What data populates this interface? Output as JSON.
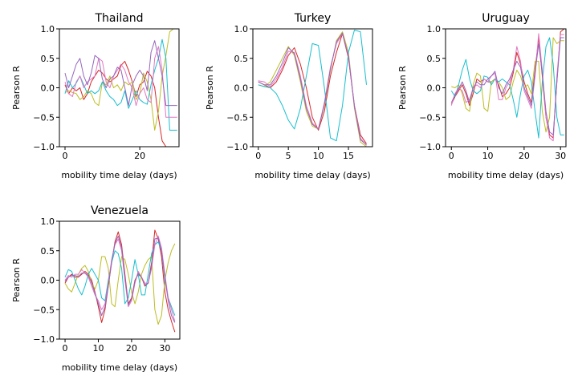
{
  "figure": {
    "background": "#ffffff",
    "series_colors": [
      "#d62728",
      "#bcbd22",
      "#17becf",
      "#e377c2",
      "#9467bd"
    ]
  },
  "chart_data": [
    {
      "type": "line",
      "title": "Thailand",
      "xlabel": "mobility time delay (days)",
      "ylabel": "Pearson R",
      "xlim": [
        -1.5,
        30.5
      ],
      "ylim": [
        -1.0,
        1.0
      ],
      "xticks": [
        0,
        20
      ],
      "yticks": [
        -1.0,
        -0.5,
        0.0,
        0.5,
        1.0
      ],
      "xtick_labels": [
        "0",
        "20"
      ],
      "ytick_labels": [
        "−1.0",
        "−0.5",
        "0.0",
        "0.5",
        "1.0"
      ],
      "grid": false,
      "x": [
        0,
        1,
        2,
        3,
        4,
        5,
        6,
        7,
        8,
        9,
        10,
        11,
        12,
        13,
        14,
        15,
        16,
        17,
        18,
        19,
        20,
        21,
        22,
        23,
        24,
        25,
        26,
        27,
        28,
        29,
        30
      ],
      "series": [
        {
          "color": "#d62728",
          "values": [
            0.05,
            -0.1,
            0.0,
            -0.05,
            0.0,
            -0.2,
            -0.1,
            0.1,
            0.2,
            0.3,
            0.25,
            0.15,
            0.1,
            0.15,
            0.2,
            0.38,
            0.45,
            0.3,
            0.1,
            -0.15,
            0.05,
            0.1,
            0.28,
            0.2,
            0.0,
            -0.5,
            -0.9,
            -1.0,
            -1.0,
            -1.0,
            -1.0
          ]
        },
        {
          "color": "#bcbd22",
          "values": [
            -0.08,
            -0.05,
            -0.08,
            -0.1,
            -0.2,
            -0.15,
            -0.05,
            -0.1,
            -0.25,
            -0.3,
            0.1,
            0.05,
            0.2,
            0.0,
            0.05,
            -0.05,
            0.1,
            0.05,
            0.1,
            -0.2,
            -0.1,
            0.25,
            0.1,
            -0.2,
            -0.72,
            -0.4,
            0.2,
            0.55,
            0.95,
            1.0,
            1.0
          ]
        },
        {
          "color": "#17becf",
          "values": [
            -0.1,
            0.12,
            0.0,
            0.08,
            0.2,
            0.05,
            -0.1,
            -0.05,
            -0.1,
            -0.05,
            0.1,
            -0.05,
            -0.15,
            -0.2,
            -0.3,
            -0.25,
            -0.05,
            -0.35,
            -0.2,
            -0.05,
            -0.2,
            -0.25,
            -0.28,
            0.05,
            0.3,
            0.5,
            0.82,
            0.5,
            -0.72,
            -0.72,
            -0.72
          ]
        },
        {
          "color": "#e377c2",
          "values": [
            0.1,
            -0.1,
            -0.15,
            0.1,
            0.2,
            0.0,
            0.1,
            0.15,
            0.2,
            0.5,
            0.45,
            0.1,
            0.0,
            0.2,
            0.3,
            0.4,
            0.3,
            0.1,
            0.0,
            -0.3,
            -0.1,
            0.0,
            -0.2,
            -0.25,
            0.5,
            0.7,
            0.3,
            -0.5,
            -0.5,
            -0.5,
            -0.5
          ]
        },
        {
          "color": "#9467bd",
          "values": [
            0.25,
            0.0,
            0.2,
            0.4,
            0.5,
            0.2,
            0.05,
            0.25,
            0.55,
            0.5,
            0.15,
            0.0,
            0.15,
            0.2,
            0.35,
            0.3,
            0.0,
            -0.3,
            0.05,
            0.2,
            0.3,
            0.2,
            -0.05,
            0.6,
            0.8,
            0.5,
            0.2,
            -0.3,
            -0.3,
            -0.3,
            -0.3
          ]
        }
      ]
    },
    {
      "type": "line",
      "title": "Turkey",
      "xlabel": "mobility time delay (days)",
      "ylabel": "Pearson R",
      "xlim": [
        -0.9,
        19.0
      ],
      "ylim": [
        -1.0,
        1.0
      ],
      "xticks": [
        0,
        5,
        10,
        15
      ],
      "yticks": [
        -1.0,
        -0.5,
        0.0,
        0.5,
        1.0
      ],
      "xtick_labels": [
        "0",
        "5",
        "10",
        "15"
      ],
      "ytick_labels": [
        "−1.0",
        "−0.5",
        "0.0",
        "0.5",
        "1.0"
      ],
      "grid": false,
      "x": [
        0,
        1,
        2,
        3,
        4,
        5,
        6,
        7,
        8,
        9,
        10,
        11,
        12,
        13,
        14,
        15,
        16,
        17,
        18
      ],
      "series": [
        {
          "color": "#d62728",
          "values": [
            0.1,
            0.05,
            0.0,
            0.1,
            0.3,
            0.55,
            0.68,
            0.4,
            0.0,
            -0.5,
            -0.72,
            -0.4,
            0.2,
            0.6,
            0.92,
            0.5,
            -0.3,
            -0.8,
            -0.95
          ]
        },
        {
          "color": "#bcbd22",
          "values": [
            0.05,
            0.02,
            0.1,
            0.3,
            0.5,
            0.7,
            0.55,
            0.1,
            -0.4,
            -0.65,
            -0.7,
            -0.3,
            0.3,
            0.8,
            0.95,
            0.6,
            -0.35,
            -0.92,
            -1.0
          ]
        },
        {
          "color": "#17becf",
          "values": [
            0.05,
            0.02,
            0.0,
            -0.1,
            -0.3,
            -0.55,
            -0.7,
            -0.35,
            0.2,
            0.75,
            0.72,
            0.0,
            -0.85,
            -0.9,
            -0.3,
            0.6,
            0.98,
            0.95,
            0.05
          ]
        },
        {
          "color": "#e377c2",
          "values": [
            0.12,
            0.1,
            0.02,
            0.15,
            0.35,
            0.62,
            0.6,
            0.2,
            -0.3,
            -0.6,
            -0.7,
            -0.25,
            0.35,
            0.75,
            0.92,
            0.55,
            -0.3,
            -0.85,
            -0.98
          ]
        },
        {
          "color": "#9467bd",
          "values": [
            0.1,
            0.05,
            0.05,
            0.2,
            0.42,
            0.68,
            0.58,
            0.15,
            -0.35,
            -0.62,
            -0.7,
            -0.28,
            0.32,
            0.78,
            0.93,
            0.52,
            -0.32,
            -0.88,
            -0.97
          ]
        }
      ]
    },
    {
      "type": "line",
      "title": "Uruguay",
      "xlabel": "mobility time delay (days)",
      "ylabel": "Pearson R",
      "xlim": [
        -1.6,
        31.5
      ],
      "ylim": [
        -1.0,
        1.0
      ],
      "xticks": [
        0,
        10,
        20,
        30
      ],
      "yticks": [
        -1.0,
        -0.5,
        0.0,
        0.5,
        1.0
      ],
      "xtick_labels": [
        "0",
        "10",
        "20",
        "30"
      ],
      "ytick_labels": [
        "−1.0",
        "−0.5",
        "0.0",
        "0.5",
        "1.0"
      ],
      "grid": false,
      "x": [
        0,
        1,
        2,
        3,
        4,
        5,
        6,
        7,
        8,
        9,
        10,
        11,
        12,
        13,
        14,
        15,
        16,
        17,
        18,
        19,
        20,
        21,
        22,
        23,
        24,
        25,
        26,
        27,
        28,
        29,
        30,
        31
      ],
      "series": [
        {
          "color": "#d62728",
          "values": [
            -0.28,
            -0.15,
            -0.05,
            0.05,
            -0.1,
            -0.3,
            -0.1,
            0.15,
            0.1,
            0.15,
            0.1,
            0.1,
            0.15,
            0.05,
            -0.15,
            -0.1,
            0.0,
            0.25,
            0.6,
            0.4,
            0.1,
            -0.1,
            -0.25,
            0.3,
            0.85,
            0.2,
            -0.5,
            -0.8,
            -0.85,
            0.1,
            0.95,
            1.0
          ]
        },
        {
          "color": "#bcbd22",
          "values": [
            0.02,
            0.0,
            0.05,
            -0.1,
            -0.35,
            -0.4,
            0.05,
            0.25,
            0.2,
            -0.35,
            -0.4,
            0.1,
            0.15,
            0.1,
            0.0,
            -0.2,
            -0.15,
            0.1,
            0.3,
            0.2,
            0.0,
            0.05,
            -0.1,
            0.45,
            0.45,
            -0.4,
            -0.75,
            -0.5,
            0.85,
            0.75,
            0.8,
            0.8
          ]
        },
        {
          "color": "#17becf",
          "values": [
            -0.05,
            -0.15,
            0.05,
            0.3,
            0.48,
            0.15,
            -0.05,
            -0.1,
            -0.05,
            0.2,
            0.18,
            0.05,
            0.15,
            0.1,
            0.15,
            0.1,
            0.05,
            -0.2,
            -0.5,
            -0.1,
            0.2,
            0.3,
            0.1,
            -0.4,
            -0.85,
            0.1,
            0.7,
            0.85,
            0.4,
            -0.5,
            -0.8,
            -0.8
          ]
        },
        {
          "color": "#e377c2",
          "values": [
            -0.3,
            -0.1,
            0.0,
            -0.05,
            -0.25,
            -0.2,
            0.0,
            0.05,
            0.0,
            0.15,
            0.1,
            0.2,
            0.25,
            -0.2,
            -0.2,
            0.0,
            0.1,
            0.3,
            0.7,
            0.45,
            -0.05,
            -0.2,
            -0.35,
            0.2,
            0.92,
            0.3,
            -0.5,
            -0.85,
            -0.9,
            0.2,
            0.9,
            0.9
          ]
        },
        {
          "color": "#9467bd",
          "values": [
            -0.25,
            -0.12,
            -0.02,
            0.1,
            -0.05,
            -0.25,
            0.0,
            0.1,
            0.05,
            0.05,
            0.15,
            0.2,
            0.28,
            0.0,
            -0.1,
            0.05,
            0.15,
            0.3,
            0.45,
            0.35,
            0.0,
            -0.15,
            -0.3,
            0.25,
            0.75,
            0.25,
            -0.4,
            -0.75,
            -0.8,
            0.1,
            0.85,
            0.85
          ]
        }
      ]
    },
    {
      "type": "line",
      "title": "Venezuela",
      "xlabel": "mobility time delay (days)",
      "ylabel": "Pearson R",
      "xlim": [
        -1.7,
        34.5
      ],
      "ylim": [
        -1.0,
        1.0
      ],
      "xticks": [
        0,
        10,
        20,
        30
      ],
      "yticks": [
        -1.0,
        -0.5,
        0.0,
        0.5,
        1.0
      ],
      "xtick_labels": [
        "0",
        "10",
        "20",
        "30"
      ],
      "ytick_labels": [
        "−1.0",
        "−0.5",
        "0.0",
        "0.5",
        "1.0"
      ],
      "grid": false,
      "x": [
        0,
        1,
        2,
        3,
        4,
        5,
        6,
        7,
        8,
        9,
        10,
        11,
        12,
        13,
        14,
        15,
        16,
        17,
        18,
        19,
        20,
        21,
        22,
        23,
        24,
        25,
        26,
        27,
        28,
        29,
        30,
        31,
        32,
        33
      ],
      "series": [
        {
          "color": "#d62728",
          "values": [
            -0.05,
            0.05,
            0.1,
            0.05,
            0.05,
            0.1,
            0.15,
            0.1,
            0.0,
            -0.2,
            -0.45,
            -0.72,
            -0.5,
            -0.1,
            0.3,
            0.65,
            0.82,
            0.6,
            0.1,
            -0.4,
            -0.3,
            0.0,
            0.1,
            0.05,
            -0.1,
            -0.05,
            0.3,
            0.85,
            0.7,
            0.4,
            -0.2,
            -0.5,
            -0.7,
            -0.88
          ]
        },
        {
          "color": "#bcbd22",
          "values": [
            -0.05,
            -0.15,
            -0.2,
            -0.05,
            0.1,
            0.2,
            0.25,
            0.15,
            -0.05,
            -0.15,
            0.0,
            0.4,
            0.4,
            0.2,
            -0.4,
            -0.45,
            0.0,
            0.4,
            0.35,
            0.1,
            -0.2,
            -0.4,
            -0.2,
            0.1,
            0.25,
            0.35,
            0.4,
            -0.5,
            -0.75,
            -0.6,
            0.0,
            0.3,
            0.5,
            0.62
          ]
        },
        {
          "color": "#17becf",
          "values": [
            0.05,
            0.18,
            0.15,
            0.0,
            -0.15,
            -0.25,
            -0.1,
            0.1,
            0.2,
            0.1,
            0.0,
            -0.3,
            -0.35,
            0.0,
            0.3,
            0.5,
            0.45,
            0.2,
            -0.4,
            -0.3,
            0.0,
            0.35,
            0.1,
            -0.25,
            -0.25,
            0.1,
            0.45,
            0.6,
            0.65,
            0.5,
            0.0,
            -0.3,
            -0.45,
            -0.6
          ]
        },
        {
          "color": "#e377c2",
          "values": [
            0.0,
            0.08,
            0.05,
            0.1,
            0.1,
            0.18,
            0.12,
            0.05,
            -0.1,
            -0.25,
            -0.35,
            -0.5,
            -0.4,
            -0.05,
            0.35,
            0.6,
            0.7,
            0.5,
            0.0,
            -0.45,
            -0.35,
            -0.05,
            0.15,
            0.05,
            -0.05,
            -0.05,
            0.2,
            0.6,
            0.75,
            0.55,
            0.1,
            -0.3,
            -0.5,
            -0.7
          ]
        },
        {
          "color": "#9467bd",
          "values": [
            -0.02,
            0.05,
            0.08,
            0.08,
            0.06,
            0.12,
            0.12,
            0.08,
            -0.05,
            -0.22,
            -0.4,
            -0.6,
            -0.45,
            -0.1,
            0.32,
            0.62,
            0.75,
            0.55,
            0.05,
            -0.42,
            -0.32,
            -0.02,
            0.12,
            0.05,
            -0.08,
            -0.05,
            0.25,
            0.7,
            0.72,
            0.5,
            0.05,
            -0.35,
            -0.6,
            -0.72
          ]
        }
      ]
    }
  ]
}
